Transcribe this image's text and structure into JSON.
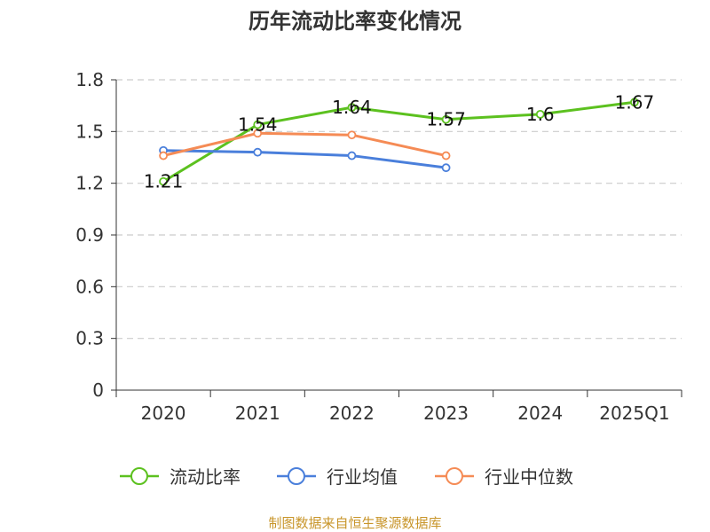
{
  "chart_data": {
    "type": "line",
    "title": "历年流动比率变化情况",
    "categories": [
      "2020",
      "2021",
      "2022",
      "2023",
      "2024",
      "2025Q1"
    ],
    "y_ticks": [
      "0",
      "0.3",
      "0.6",
      "0.9",
      "1.2",
      "1.5",
      "1.8"
    ],
    "ylim": [
      0,
      1.8
    ],
    "grid": true,
    "legend_position": "bottom",
    "series": [
      {
        "name": "流动比率",
        "color": "#5cc11f",
        "values": [
          1.21,
          1.54,
          1.64,
          1.57,
          1.6,
          1.67
        ],
        "labels": [
          "1.21",
          "1.54",
          "1.64",
          "1.57",
          "1.6",
          "1.67"
        ]
      },
      {
        "name": "行业均值",
        "color": "#4a7fdb",
        "values": [
          1.39,
          1.38,
          1.36,
          1.29,
          null,
          null
        ]
      },
      {
        "name": "行业中位数",
        "color": "#f58b55",
        "values": [
          1.36,
          1.49,
          1.48,
          1.36,
          null,
          null
        ]
      }
    ],
    "source": "制图数据来自恒生聚源数据库"
  }
}
